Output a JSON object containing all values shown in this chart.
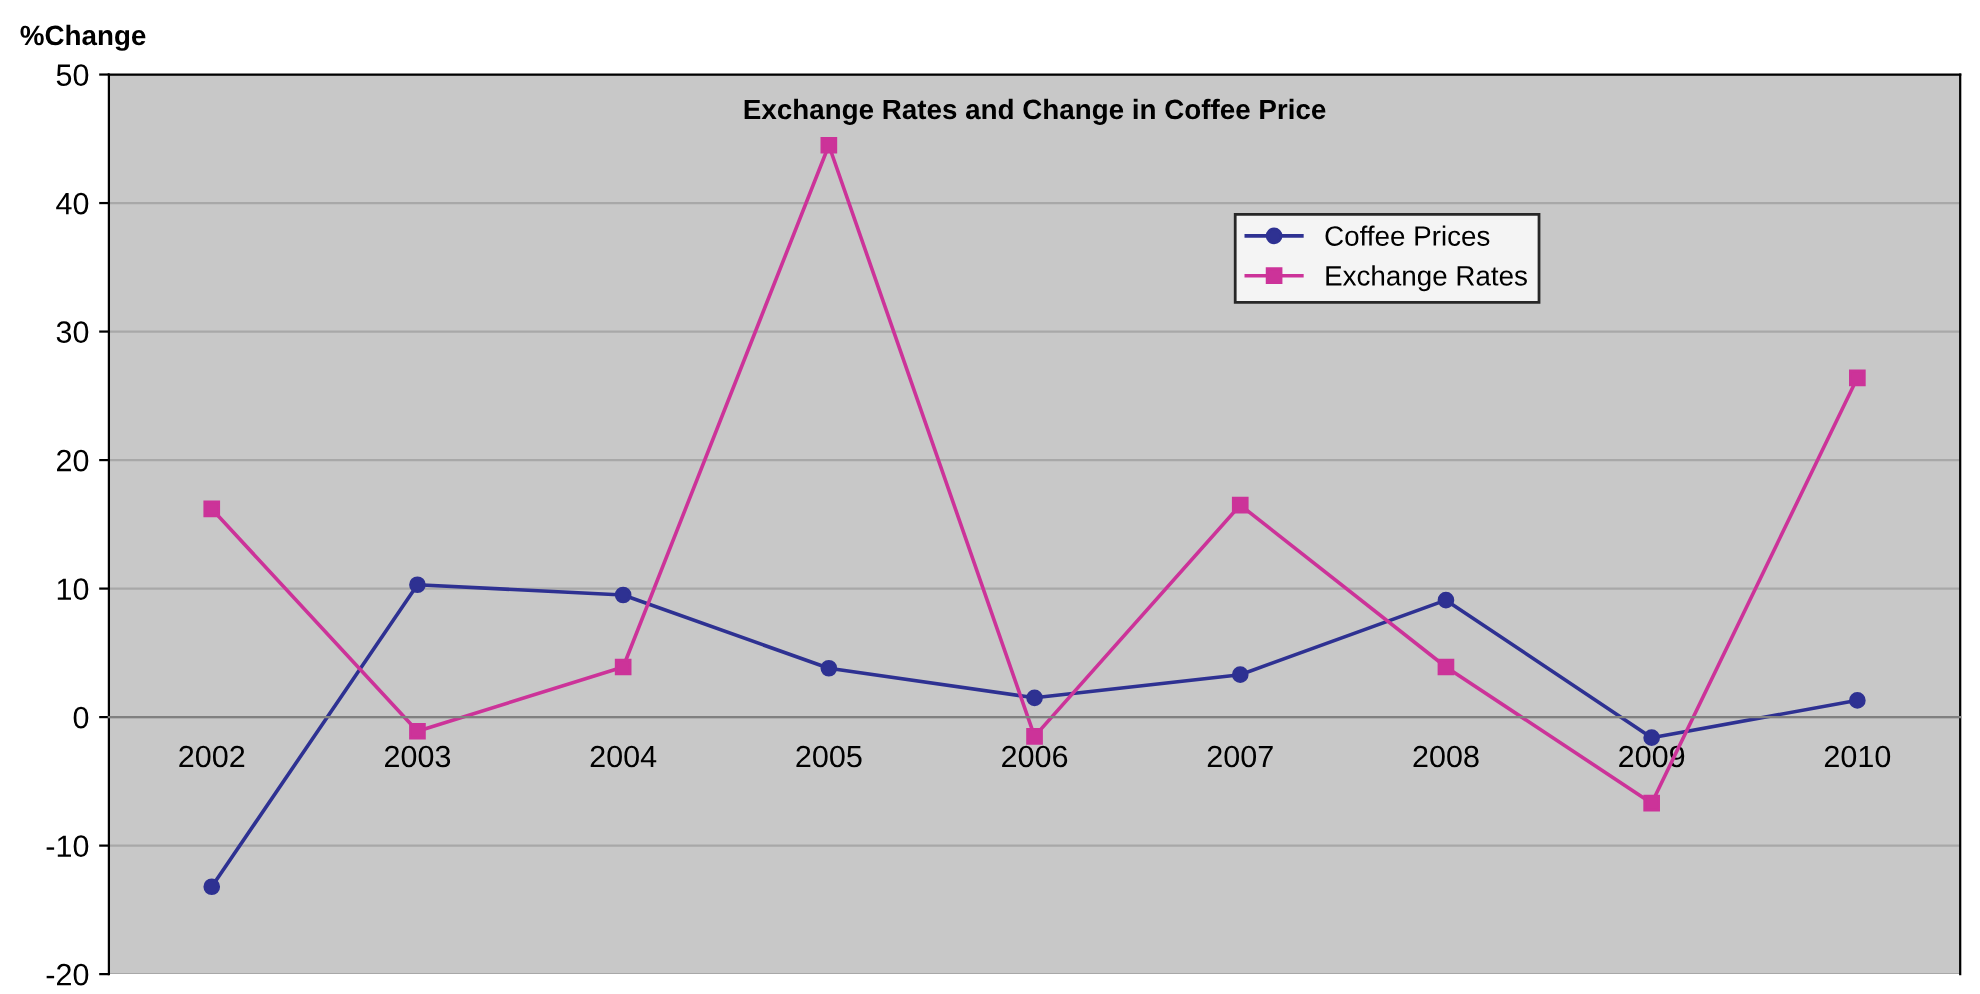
{
  "chart_data": {
    "type": "line",
    "title": "Exchange Rates and Change in Coffee Price",
    "ylabel": "%Change",
    "categories": [
      "2002",
      "2003",
      "2004",
      "2005",
      "2006",
      "2007",
      "2008",
      "2009",
      "2010"
    ],
    "series": [
      {
        "name": "Coffee Prices",
        "color": "#2e3192",
        "marker": "circle",
        "values": [
          -13.2,
          10.3,
          9.5,
          3.8,
          1.5,
          3.3,
          9.1,
          -1.6,
          1.3
        ]
      },
      {
        "name": "Exchange Rates",
        "color": "#cc3399",
        "marker": "square",
        "values": [
          16.2,
          -1.1,
          3.9,
          44.5,
          -1.5,
          16.5,
          3.9,
          -6.7,
          26.4
        ]
      }
    ],
    "ylim": [
      -20,
      50
    ],
    "yticks": [
      -20,
      -10,
      0,
      10,
      20,
      30,
      40,
      50
    ],
    "grid": "y",
    "legend": "top right",
    "line_style": "solid"
  }
}
